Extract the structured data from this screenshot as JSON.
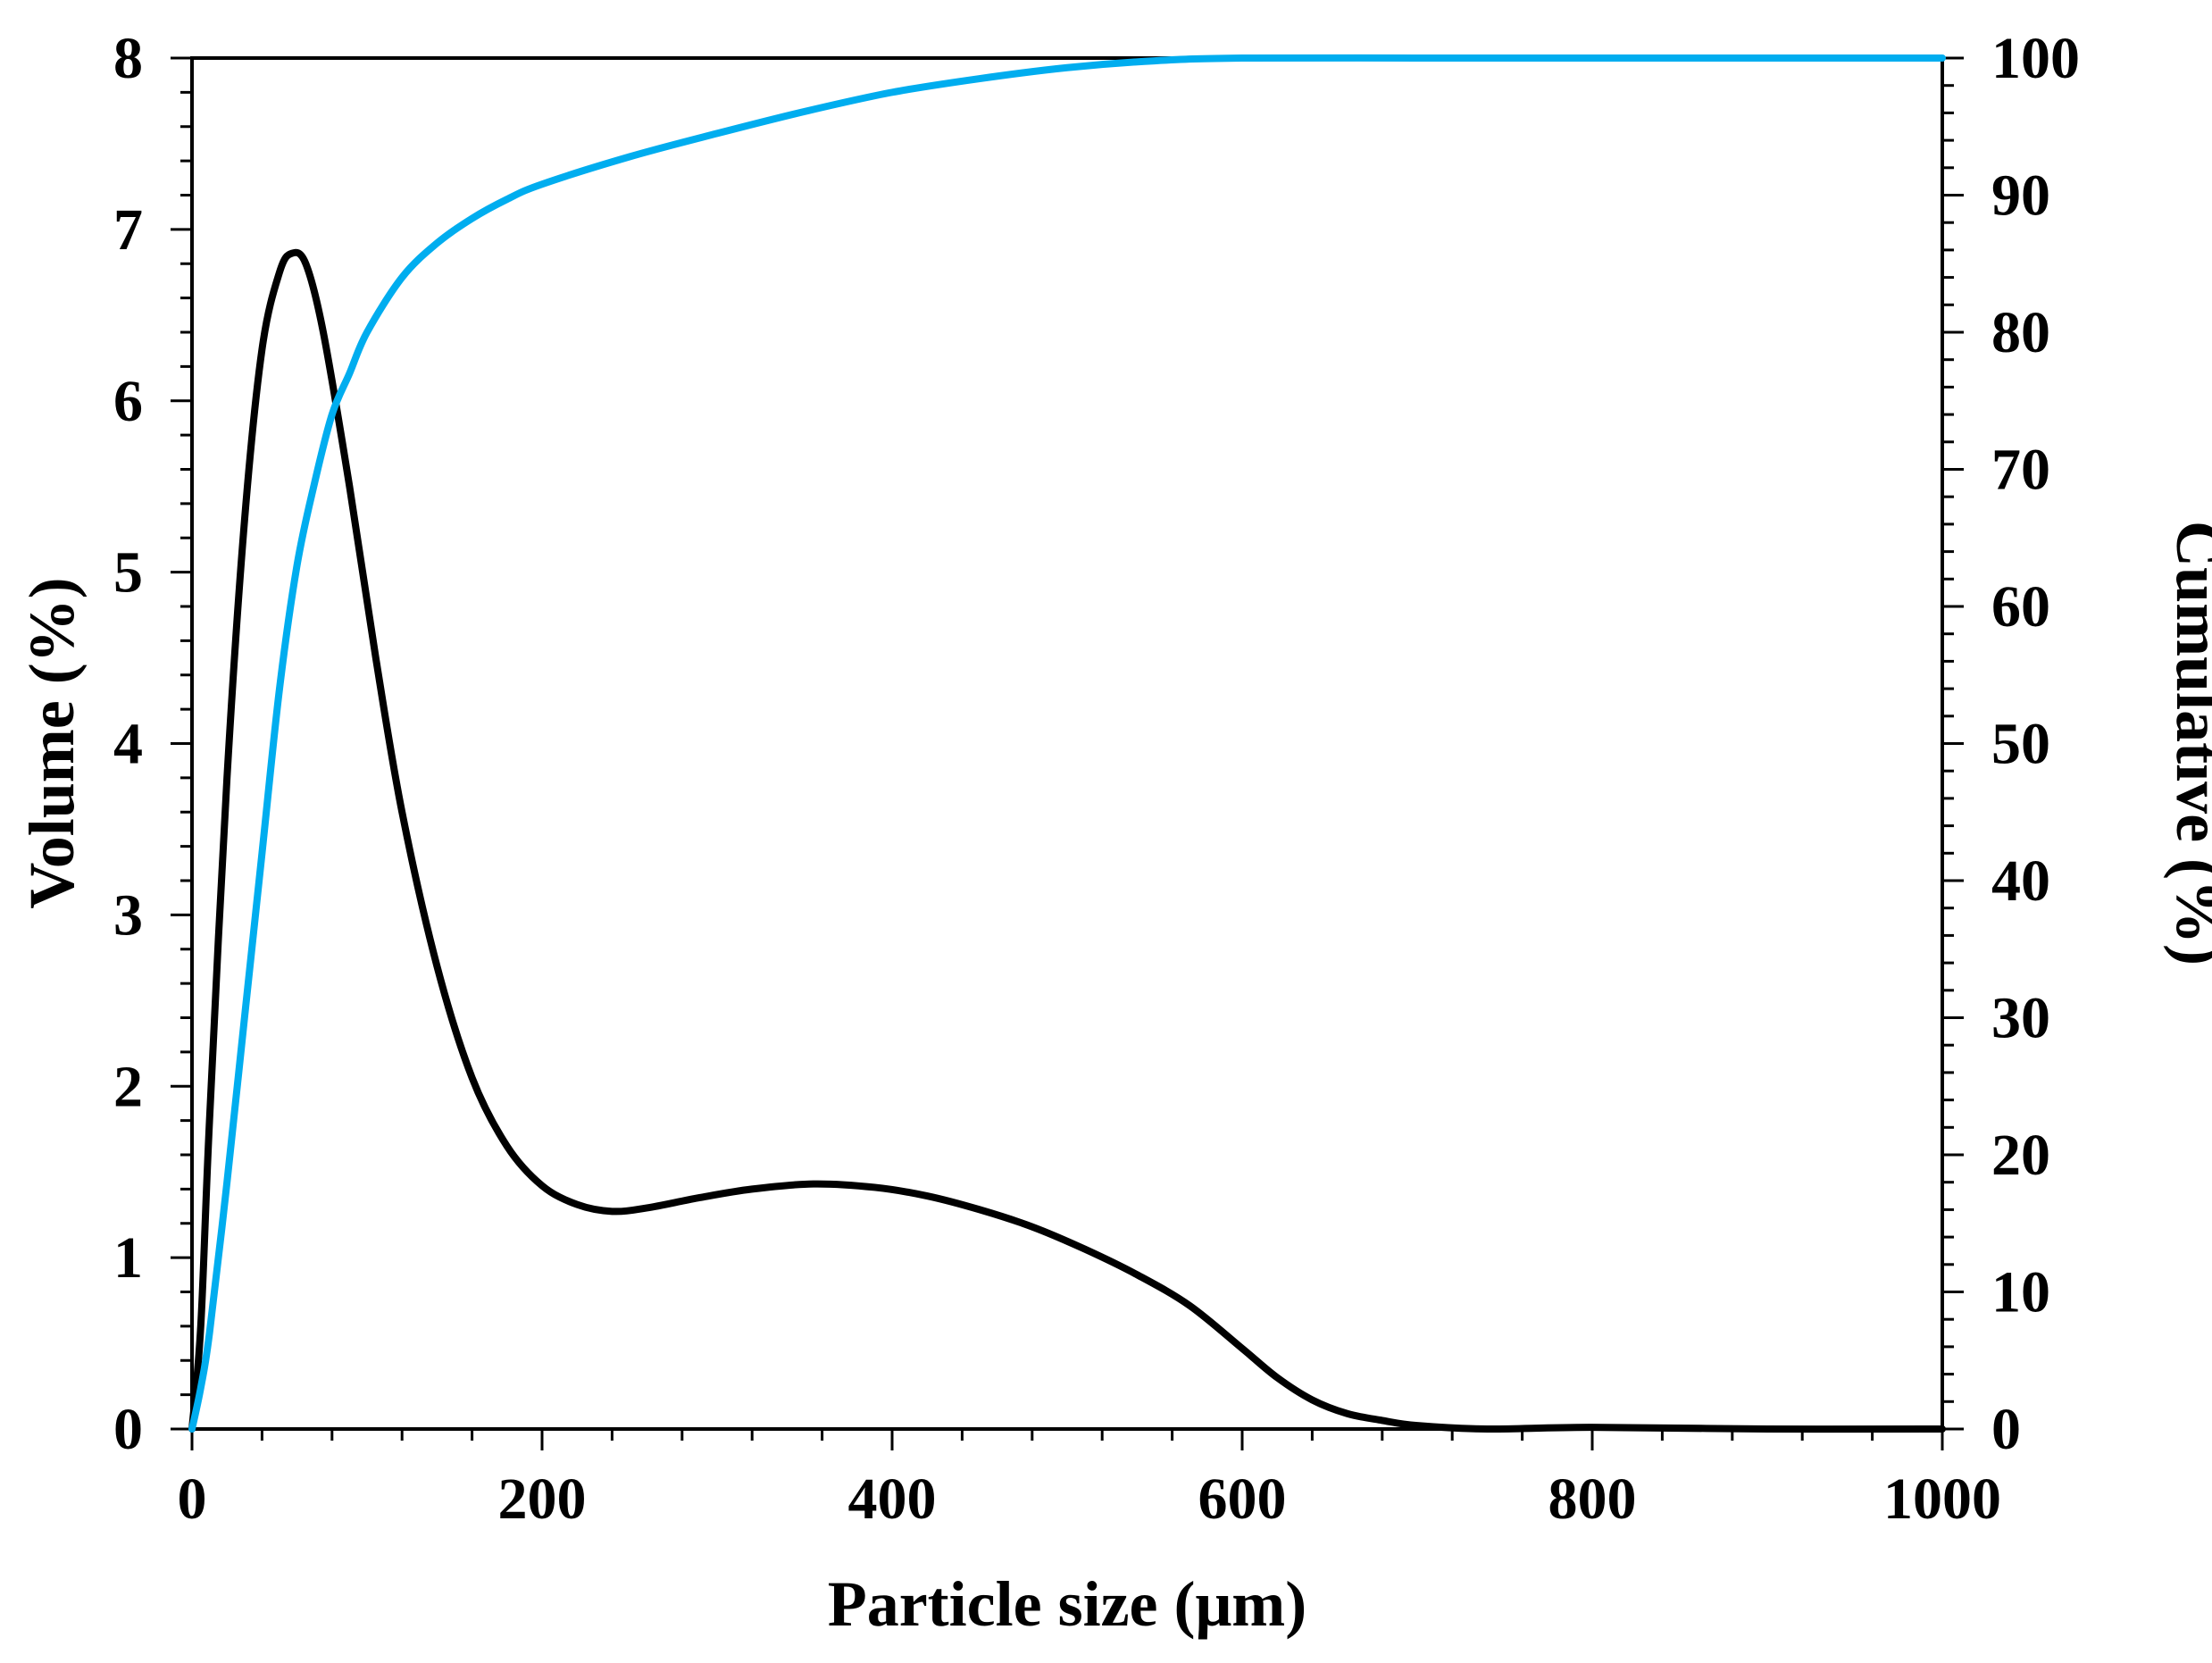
{
  "chart_data": {
    "type": "line",
    "xlabel": "Particle size (μm)",
    "ylabel": "Volume (%)",
    "y2label": "Cumulative (%)",
    "xlim": [
      0,
      1000
    ],
    "ylim": [
      0,
      8
    ],
    "y2lim": [
      0,
      100
    ],
    "x_ticks": [
      "0",
      "200",
      "400",
      "600",
      "800",
      "1000"
    ],
    "y_ticks": [
      "0",
      "1",
      "2",
      "3",
      "4",
      "5",
      "6",
      "7",
      "8"
    ],
    "y2_ticks": [
      "0",
      "10",
      "20",
      "30",
      "40",
      "50",
      "60",
      "70",
      "80",
      "90",
      "100"
    ],
    "grid": false,
    "series": [
      {
        "axis": "left",
        "color": "#000000",
        "points": [
          [
            0,
            0
          ],
          [
            5,
            0.6
          ],
          [
            10,
            1.8
          ],
          [
            20,
            3.8
          ],
          [
            30,
            5.3
          ],
          [
            40,
            6.3
          ],
          [
            50,
            6.75
          ],
          [
            57,
            6.86
          ],
          [
            65,
            6.8
          ],
          [
            75,
            6.4
          ],
          [
            90,
            5.5
          ],
          [
            105,
            4.5
          ],
          [
            120,
            3.6
          ],
          [
            140,
            2.7
          ],
          [
            160,
            2.05
          ],
          [
            180,
            1.65
          ],
          [
            200,
            1.42
          ],
          [
            220,
            1.31
          ],
          [
            240,
            1.27
          ],
          [
            260,
            1.29
          ],
          [
            290,
            1.35
          ],
          [
            320,
            1.4
          ],
          [
            355,
            1.43
          ],
          [
            390,
            1.41
          ],
          [
            420,
            1.36
          ],
          [
            450,
            1.28
          ],
          [
            480,
            1.18
          ],
          [
            510,
            1.05
          ],
          [
            540,
            0.9
          ],
          [
            570,
            0.72
          ],
          [
            600,
            0.47
          ],
          [
            620,
            0.3
          ],
          [
            640,
            0.17
          ],
          [
            660,
            0.09
          ],
          [
            680,
            0.05
          ],
          [
            700,
            0.02
          ],
          [
            740,
            0.0
          ],
          [
            800,
            0.01
          ],
          [
            900,
            0.0
          ],
          [
            1000,
            0.0
          ]
        ]
      },
      {
        "axis": "right",
        "color": "#00ADEF",
        "points": [
          [
            0,
            0
          ],
          [
            5,
            3
          ],
          [
            10,
            7
          ],
          [
            20,
            18
          ],
          [
            30,
            30
          ],
          [
            40,
            42
          ],
          [
            50,
            54
          ],
          [
            60,
            63
          ],
          [
            70,
            69
          ],
          [
            80,
            74
          ],
          [
            90,
            77
          ],
          [
            100,
            80
          ],
          [
            120,
            84
          ],
          [
            140,
            86.5
          ],
          [
            160,
            88.3
          ],
          [
            180,
            89.7
          ],
          [
            200,
            90.8
          ],
          [
            250,
            92.8
          ],
          [
            300,
            94.5
          ],
          [
            350,
            96.1
          ],
          [
            400,
            97.5
          ],
          [
            450,
            98.5
          ],
          [
            500,
            99.3
          ],
          [
            550,
            99.8
          ],
          [
            600,
            100
          ],
          [
            700,
            100
          ],
          [
            800,
            100
          ],
          [
            1000,
            100
          ]
        ]
      }
    ]
  }
}
